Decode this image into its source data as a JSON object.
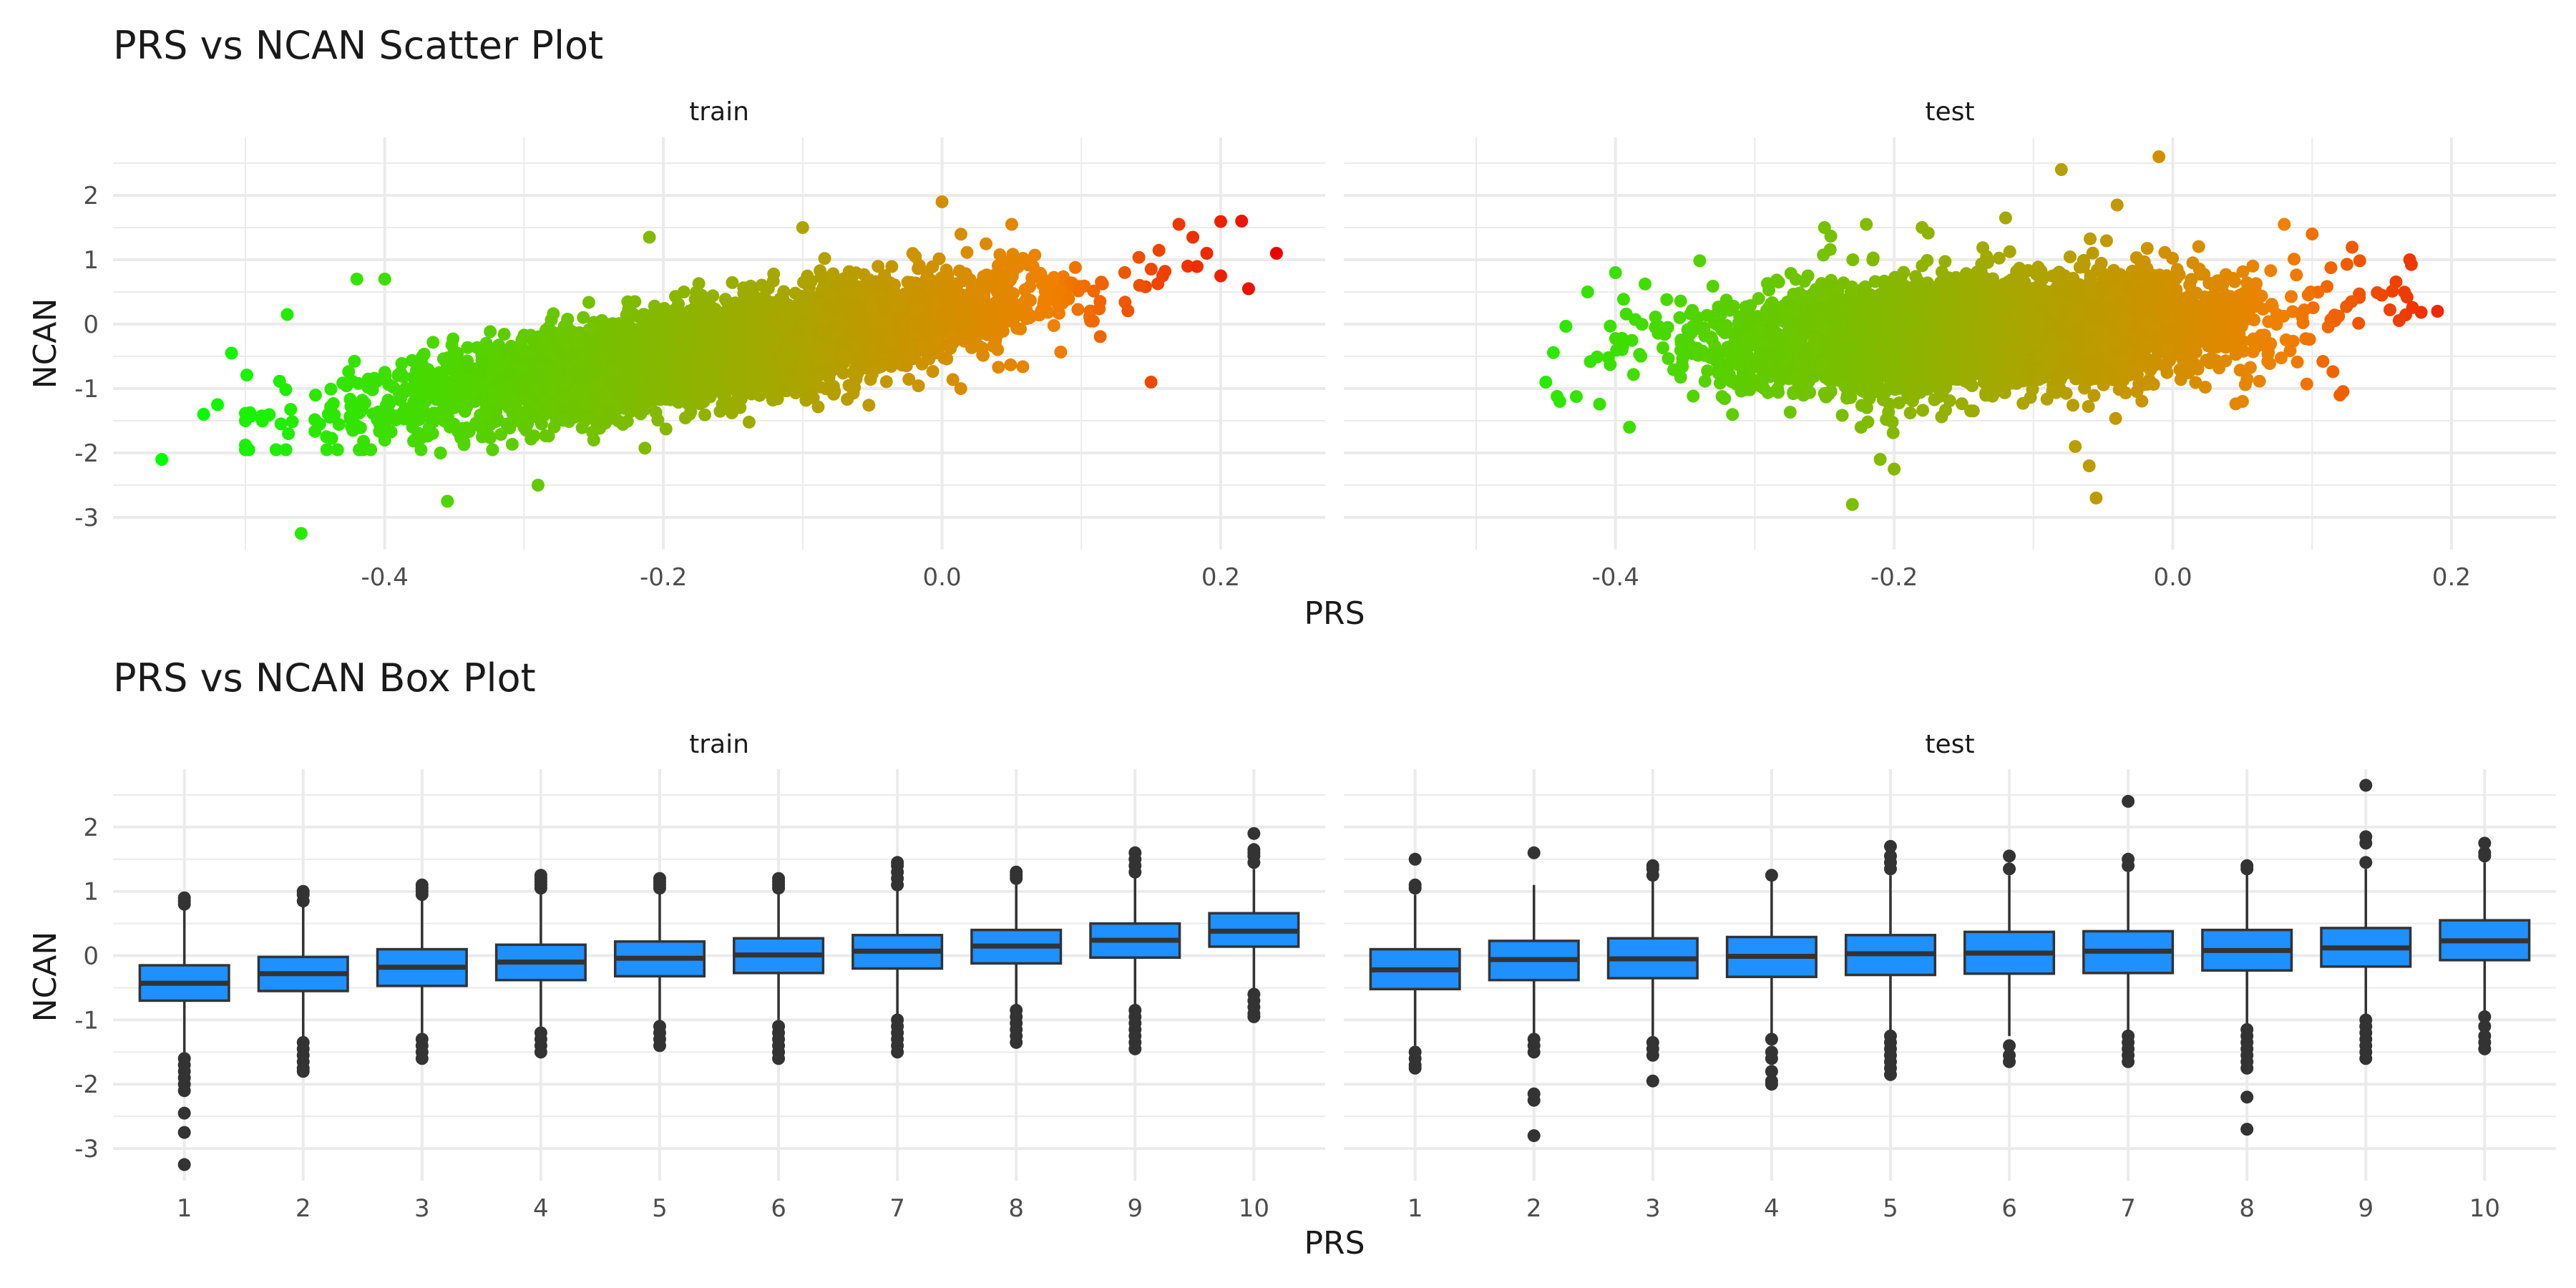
{
  "colors": {
    "grid": "#ebebeb",
    "text": "#4d4d4d",
    "title": "#1a1a1a",
    "box_fill": "#1e90ff",
    "box_line": "#333333",
    "gradient_low": "#00ff00",
    "gradient_mid": "#f08000",
    "gradient_high": "#ee0000"
  },
  "chart_data": [
    {
      "type": "scatter",
      "title": "PRS vs NCAN Scatter Plot",
      "xlabel": "PRS",
      "ylabel": "NCAN",
      "facets": [
        "train",
        "test"
      ],
      "xlim": [
        -0.595,
        0.275
      ],
      "ylim": [
        -3.5,
        2.9
      ],
      "xticks": [
        -0.4,
        -0.2,
        0.0,
        0.2
      ],
      "xtick_labels": [
        "-0.4",
        "-0.2",
        "0.0",
        "0.2"
      ],
      "yticks": [
        -3,
        -2,
        -1,
        0,
        1,
        2
      ],
      "ytick_labels": [
        "-3",
        "-2",
        "-1",
        "0",
        "1",
        "2"
      ],
      "grid": true,
      "legend": "none",
      "color_by": "PRS",
      "point_density": {
        "train": 5000,
        "test": 4000
      },
      "trend": {
        "train": {
          "slope": 3.4,
          "intercept": 0.15,
          "noise_sd": 0.35,
          "x_mean": -0.16,
          "x_sd": 0.105
        },
        "test": {
          "slope": 1.1,
          "intercept": 0.02,
          "noise_sd": 0.42,
          "x_mean": -0.135,
          "x_sd": 0.095
        }
      },
      "outliers": {
        "train": [
          [
            -0.56,
            -2.1
          ],
          [
            -0.53,
            -1.4
          ],
          [
            -0.51,
            -0.45
          ],
          [
            -0.5,
            -1.5
          ],
          [
            -0.52,
            -1.25
          ],
          [
            -0.47,
            0.15
          ],
          [
            -0.46,
            -3.25
          ],
          [
            -0.42,
            0.7
          ],
          [
            -0.4,
            0.7
          ],
          [
            -0.4,
            -1.8
          ],
          [
            -0.38,
            -1.6
          ],
          [
            -0.36,
            -2.0
          ],
          [
            -0.355,
            -2.75
          ],
          [
            -0.33,
            -1.75
          ],
          [
            -0.3,
            -1.6
          ],
          [
            -0.29,
            -2.5
          ],
          [
            -0.25,
            -1.8
          ],
          [
            -0.21,
            1.35
          ],
          [
            -0.1,
            1.5
          ],
          [
            0.0,
            1.9
          ],
          [
            0.05,
            1.55
          ],
          [
            0.15,
            -0.9
          ],
          [
            0.17,
            1.55
          ],
          [
            0.18,
            1.35
          ],
          [
            0.19,
            1.1
          ],
          [
            0.2,
            0.75
          ],
          [
            0.215,
            1.6
          ],
          [
            0.22,
            0.55
          ],
          [
            0.24,
            1.1
          ]
        ],
        "test": [
          [
            -0.45,
            -0.9
          ],
          [
            -0.44,
            -1.2
          ],
          [
            -0.42,
            0.5
          ],
          [
            -0.4,
            0.8
          ],
          [
            -0.39,
            -1.6
          ],
          [
            -0.25,
            1.5
          ],
          [
            -0.23,
            -2.8
          ],
          [
            -0.22,
            1.55
          ],
          [
            -0.2,
            -2.25
          ],
          [
            -0.21,
            -2.1
          ],
          [
            -0.18,
            1.5
          ],
          [
            -0.12,
            1.65
          ],
          [
            -0.08,
            2.4
          ],
          [
            -0.07,
            -1.9
          ],
          [
            -0.06,
            -2.2
          ],
          [
            -0.055,
            -2.7
          ],
          [
            -0.04,
            1.85
          ],
          [
            -0.01,
            2.6
          ],
          [
            0.05,
            -1.2
          ],
          [
            0.08,
            1.55
          ],
          [
            0.1,
            1.4
          ],
          [
            0.12,
            -1.1
          ],
          [
            0.15,
            0.45
          ],
          [
            0.17,
            1.0
          ],
          [
            0.19,
            0.2
          ]
        ]
      }
    },
    {
      "type": "box",
      "title": "PRS vs NCAN Box Plot",
      "xlabel": "PRS",
      "ylabel": "NCAN",
      "facets": [
        "train",
        "test"
      ],
      "categories": [
        "1",
        "2",
        "3",
        "4",
        "5",
        "6",
        "7",
        "8",
        "9",
        "10"
      ],
      "ylim": [
        -3.5,
        2.9
      ],
      "yticks": [
        -3,
        -2,
        -1,
        0,
        1,
        2
      ],
      "ytick_labels": [
        "-3",
        "-2",
        "-1",
        "0",
        "1",
        "2"
      ],
      "grid": true,
      "legend": "none",
      "boxes": {
        "train": [
          {
            "q1": -0.7,
            "median": -0.43,
            "q3": -0.15,
            "lo": -1.5,
            "hi": 0.75,
            "outliers": [
              0.8,
              0.85,
              0.9,
              -1.6,
              -1.7,
              -1.8,
              -1.9,
              -2.0,
              -2.1,
              -2.45,
              -2.75,
              -3.25
            ]
          },
          {
            "q1": -0.55,
            "median": -0.28,
            "q3": -0.02,
            "lo": -1.3,
            "hi": 0.8,
            "outliers": [
              0.85,
              0.95,
              1.0,
              -1.35,
              -1.45,
              -1.55,
              -1.65,
              -1.75,
              -1.8
            ]
          },
          {
            "q1": -0.47,
            "median": -0.18,
            "q3": 0.1,
            "lo": -1.25,
            "hi": 0.9,
            "outliers": [
              0.95,
              1.0,
              1.05,
              1.1,
              -1.3,
              -1.4,
              -1.5,
              -1.6
            ]
          },
          {
            "q1": -0.38,
            "median": -0.1,
            "q3": 0.17,
            "lo": -1.1,
            "hi": 1.0,
            "outliers": [
              1.05,
              1.1,
              1.15,
              1.2,
              1.25,
              -1.2,
              -1.3,
              -1.4,
              -1.5
            ]
          },
          {
            "q1": -0.32,
            "median": -0.04,
            "q3": 0.22,
            "lo": -1.05,
            "hi": 1.0,
            "outliers": [
              1.05,
              1.1,
              1.15,
              1.2,
              -1.1,
              -1.2,
              -1.3,
              -1.4
            ]
          },
          {
            "q1": -0.27,
            "median": 0.01,
            "q3": 0.27,
            "lo": -1.0,
            "hi": 1.0,
            "outliers": [
              1.05,
              1.1,
              1.15,
              1.2,
              -1.1,
              -1.2,
              -1.3,
              -1.4,
              -1.5,
              -1.6
            ]
          },
          {
            "q1": -0.2,
            "median": 0.07,
            "q3": 0.32,
            "lo": -0.95,
            "hi": 1.05,
            "outliers": [
              1.1,
              1.2,
              1.3,
              1.4,
              1.45,
              -1.0,
              -1.1,
              -1.2,
              -1.3,
              -1.4,
              -1.5
            ]
          },
          {
            "q1": -0.12,
            "median": 0.15,
            "q3": 0.4,
            "lo": -0.8,
            "hi": 1.15,
            "outliers": [
              1.2,
              1.25,
              1.3,
              -0.85,
              -0.95,
              -1.05,
              -1.15,
              -1.25,
              -1.35
            ]
          },
          {
            "q1": -0.03,
            "median": 0.24,
            "q3": 0.5,
            "lo": -0.8,
            "hi": 1.25,
            "outliers": [
              1.3,
              1.4,
              1.5,
              1.6,
              -0.85,
              -0.95,
              -1.05,
              -1.15,
              -1.25,
              -1.35,
              -1.45
            ]
          },
          {
            "q1": 0.14,
            "median": 0.38,
            "q3": 0.66,
            "lo": -0.55,
            "hi": 1.35,
            "outliers": [
              1.45,
              1.55,
              1.6,
              1.65,
              1.9,
              -0.6,
              -0.7,
              -0.8,
              -0.9,
              -0.95
            ]
          }
        ],
        "test": [
          {
            "q1": -0.52,
            "median": -0.22,
            "q3": 0.1,
            "lo": -1.4,
            "hi": 0.95,
            "outliers": [
              1.05,
              1.1,
              1.5,
              -1.5,
              -1.6,
              -1.7,
              -1.75
            ]
          },
          {
            "q1": -0.38,
            "median": -0.06,
            "q3": 0.23,
            "lo": -1.25,
            "hi": 1.1,
            "outliers": [
              1.6,
              -1.3,
              -1.4,
              -1.5,
              -2.15,
              -2.25,
              -2.8
            ]
          },
          {
            "q1": -0.35,
            "median": -0.05,
            "q3": 0.27,
            "lo": -1.25,
            "hi": 1.2,
            "outliers": [
              1.25,
              1.35,
              1.4,
              -1.35,
              -1.45,
              -1.55,
              -1.95
            ]
          },
          {
            "q1": -0.33,
            "median": -0.01,
            "q3": 0.29,
            "lo": -1.25,
            "hi": 1.2,
            "outliers": [
              1.25,
              -1.3,
              -1.5,
              -1.6,
              -1.8,
              -1.95,
              -2.0
            ]
          },
          {
            "q1": -0.3,
            "median": 0.03,
            "q3": 0.32,
            "lo": -1.2,
            "hi": 1.25,
            "outliers": [
              1.35,
              1.45,
              1.55,
              1.7,
              -1.25,
              -1.35,
              -1.45,
              -1.55,
              -1.65,
              -1.75,
              -1.85
            ]
          },
          {
            "q1": -0.28,
            "median": 0.04,
            "q3": 0.37,
            "lo": -1.25,
            "hi": 1.25,
            "outliers": [
              1.35,
              1.55,
              -1.4,
              -1.55,
              -1.65
            ]
          },
          {
            "q1": -0.27,
            "median": 0.07,
            "q3": 0.38,
            "lo": -1.2,
            "hi": 1.3,
            "outliers": [
              1.4,
              1.5,
              2.4,
              -1.25,
              -1.35,
              -1.45,
              -1.55,
              -1.65
            ]
          },
          {
            "q1": -0.23,
            "median": 0.08,
            "q3": 0.4,
            "lo": -1.1,
            "hi": 1.3,
            "outliers": [
              1.35,
              1.4,
              -1.15,
              -1.25,
              -1.35,
              -1.45,
              -1.55,
              -1.65,
              -1.75,
              -2.2,
              -2.7
            ]
          },
          {
            "q1": -0.17,
            "median": 0.12,
            "q3": 0.43,
            "lo": -0.95,
            "hi": 1.35,
            "outliers": [
              1.45,
              1.75,
              1.85,
              2.65,
              -1.0,
              -1.1,
              -1.2,
              -1.3,
              -1.4,
              -1.5,
              -1.6
            ]
          },
          {
            "q1": -0.07,
            "median": 0.23,
            "q3": 0.55,
            "lo": -0.9,
            "hi": 1.45,
            "outliers": [
              1.55,
              1.6,
              1.75,
              -0.95,
              -1.1,
              -1.25,
              -1.35,
              -1.45
            ]
          }
        ]
      }
    }
  ]
}
